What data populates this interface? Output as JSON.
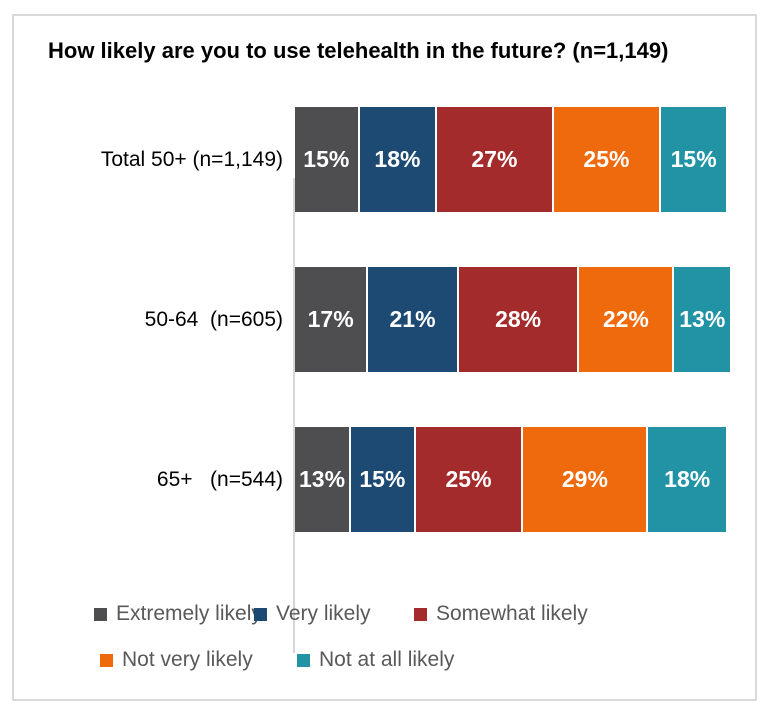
{
  "title": "How likely are you to use telehealth in the future? (n=1,149)",
  "chart_data": {
    "type": "bar",
    "variant": "stacked",
    "orientation": "horizontal",
    "title": "How likely are you to use telehealth in the future? (n=1,149)",
    "unit": "%",
    "xlim": [
      0,
      100
    ],
    "grid": false,
    "legend_position": "bottom",
    "categories": [
      "Total 50+ (n=1,149)",
      "50-64  (n=605)",
      "65+   (n=544)"
    ],
    "series": [
      {
        "name": "Extremely likely",
        "color": "#4E4E50",
        "values": [
          15,
          17,
          13
        ],
        "labels": [
          "15%",
          "17%",
          "13%"
        ]
      },
      {
        "name": "Very likely",
        "color": "#1C4A73",
        "values": [
          18,
          21,
          15
        ],
        "labels": [
          "18%",
          "21%",
          "15%"
        ]
      },
      {
        "name": "Somewhat likely",
        "color": "#A32B2B",
        "values": [
          27,
          28,
          25
        ],
        "labels": [
          "27%",
          "28%",
          "25%"
        ]
      },
      {
        "name": "Not very likely",
        "color": "#EF6A0D",
        "values": [
          25,
          22,
          29
        ],
        "labels": [
          "25%",
          "22%",
          "29%"
        ]
      },
      {
        "name": "Not at all likely",
        "color": "#2193A5",
        "values": [
          15,
          13,
          18
        ],
        "labels": [
          "15%",
          "13%",
          "18%"
        ]
      }
    ]
  },
  "colors": {
    "box_border": "#D9D9D9",
    "axis_line": "#D6D6D6",
    "legend_text": "#595959",
    "value_label_text": "#FFFFFF",
    "title_text": "#000000"
  }
}
